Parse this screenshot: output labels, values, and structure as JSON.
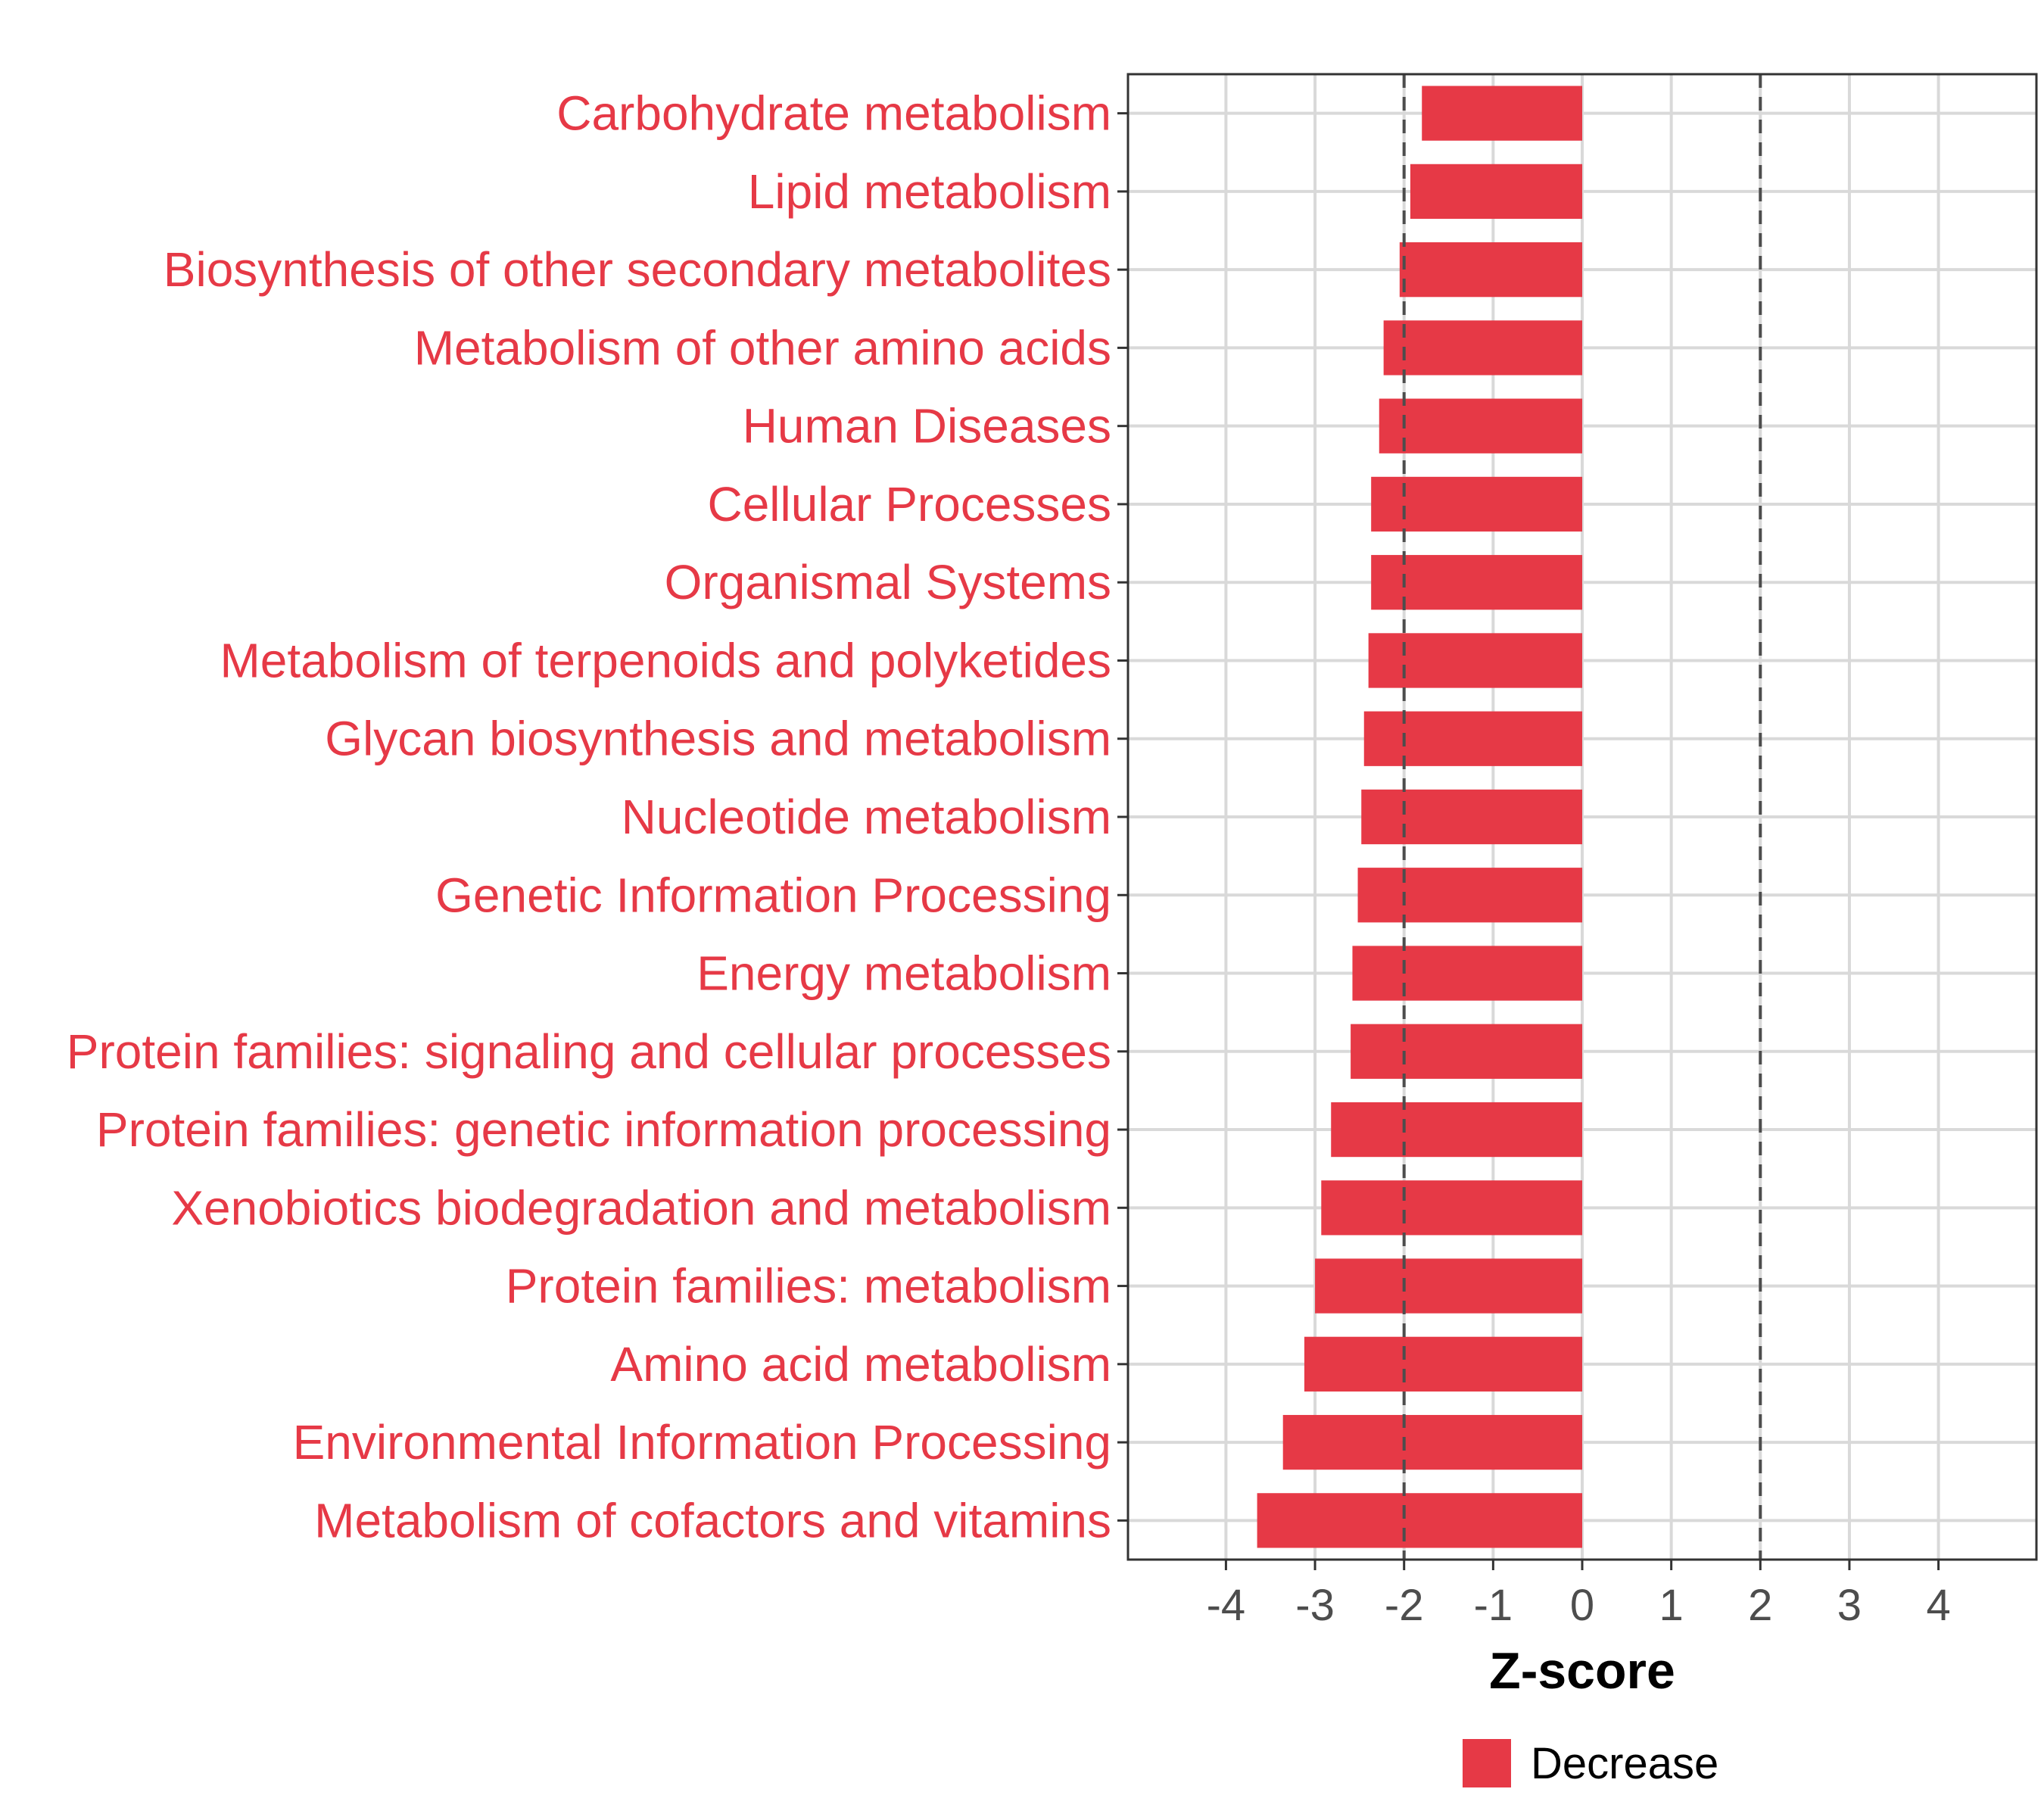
{
  "chart_data": {
    "type": "bar",
    "orientation": "horizontal",
    "categories": [
      "Carbohydrate metabolism",
      "Lipid metabolism",
      "Biosynthesis of other secondary metabolites",
      "Metabolism of other amino acids",
      "Human Diseases",
      "Cellular Processes",
      "Organismal Systems",
      "Metabolism of terpenoids and polyketides",
      "Glycan biosynthesis and metabolism",
      "Nucleotide metabolism",
      "Genetic Information Processing",
      "Energy metabolism",
      "Protein families: signaling and cellular processes",
      "Protein families: genetic information processing",
      "Xenobiotics biodegradation and metabolism",
      "Protein families: metabolism",
      "Amino acid metabolism",
      "Environmental Information Processing",
      "Metabolism of cofactors and vitamins"
    ],
    "series": [
      {
        "name": "Decrease",
        "color": "#e63946",
        "values": [
          -1.8,
          -1.93,
          -2.05,
          -2.23,
          -2.28,
          -2.37,
          -2.37,
          -2.4,
          -2.45,
          -2.48,
          -2.52,
          -2.58,
          -2.6,
          -2.82,
          -2.93,
          -3.0,
          -3.12,
          -3.36,
          -3.65
        ]
      }
    ],
    "xlabel": "Z-score",
    "ylabel": "",
    "xlim": [
      -5.1,
      5.1
    ],
    "xticks": [
      -4,
      -3,
      -2,
      -1,
      0,
      1,
      2,
      3,
      4
    ],
    "xtick_labels": [
      "-4",
      "-3",
      "-2",
      "-1",
      "0",
      "1",
      "2",
      "3",
      "4"
    ],
    "reference_lines": [
      -2,
      2
    ],
    "label_color": "#e63946",
    "grid": true,
    "legend": {
      "position": "bottom",
      "entries": [
        "Decrease"
      ]
    }
  }
}
